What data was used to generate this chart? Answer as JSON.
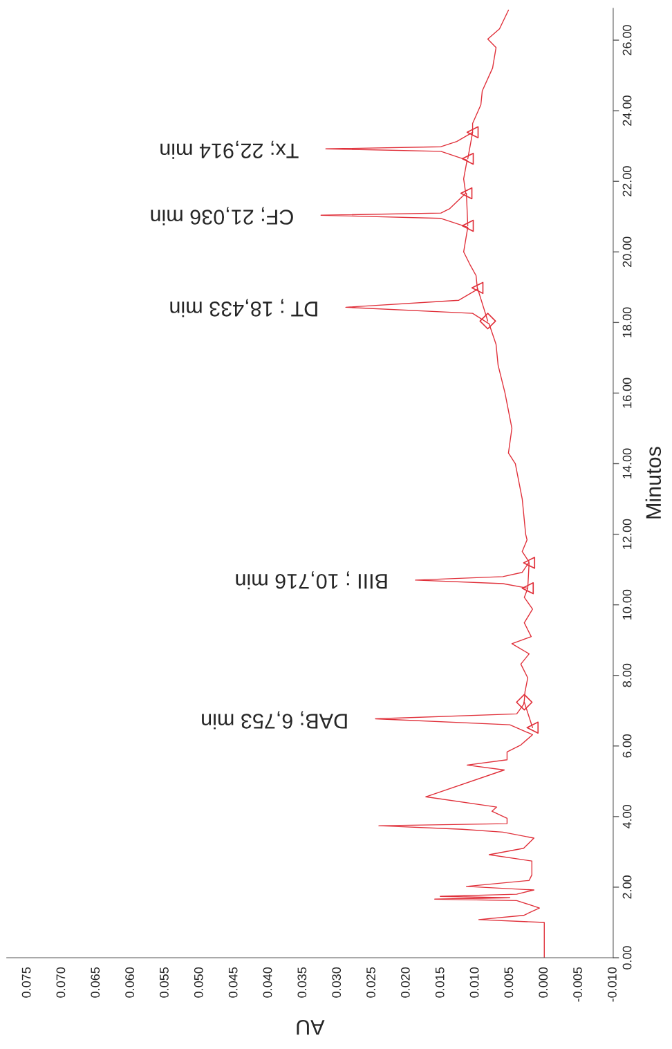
{
  "chart_data": {
    "type": "line",
    "xlabel": "AU",
    "ylabel": "Minutos",
    "xlim": [
      0.078,
      -0.01
    ],
    "ylim": [
      0,
      26.9
    ],
    "yticks": [
      {
        "value": 0,
        "label": "0.00"
      },
      {
        "value": 2,
        "label": "2.00"
      },
      {
        "value": 4,
        "label": "4.00"
      },
      {
        "value": 6,
        "label": "6.00"
      },
      {
        "value": 8,
        "label": "8.00"
      },
      {
        "value": 10,
        "label": "10.00"
      },
      {
        "value": 12,
        "label": "12.00"
      },
      {
        "value": 14,
        "label": "14.00"
      },
      {
        "value": 16,
        "label": "16.00"
      },
      {
        "value": 18,
        "label": "18.00"
      },
      {
        "value": 20,
        "label": "20.00"
      },
      {
        "value": 22,
        "label": "22.00"
      },
      {
        "value": 24,
        "label": "24.00"
      },
      {
        "value": 26,
        "label": "26.00"
      }
    ],
    "xticks": [
      {
        "value": -0.01,
        "label": "-0.010"
      },
      {
        "value": -0.005,
        "label": "-0.005"
      },
      {
        "value": 0,
        "label": "0.000"
      },
      {
        "value": 0.005,
        "label": "0.005"
      },
      {
        "value": 0.01,
        "label": "0.010"
      },
      {
        "value": 0.015,
        "label": "0.015"
      },
      {
        "value": 0.02,
        "label": "0.020"
      },
      {
        "value": 0.025,
        "label": "0.025"
      },
      {
        "value": 0.03,
        "label": "0.030"
      },
      {
        "value": 0.035,
        "label": "0.035"
      },
      {
        "value": 0.04,
        "label": "0.040"
      },
      {
        "value": 0.045,
        "label": "0.045"
      },
      {
        "value": 0.05,
        "label": "0.050"
      },
      {
        "value": 0.055,
        "label": "0.055"
      },
      {
        "value": 0.06,
        "label": "0.060"
      },
      {
        "value": 0.065,
        "label": "0.065"
      },
      {
        "value": 0.07,
        "label": "0.070"
      },
      {
        "value": 0.075,
        "label": "0.075"
      }
    ],
    "series": [
      {
        "color": "#e0303a",
        "values": [
          0,
          1.0,
          1.08,
          1.2,
          1.41,
          1.62,
          1.66,
          1.7,
          1.74,
          1.8,
          1.92,
          2.02,
          2.19,
          2.35,
          2.74,
          2.92,
          3.1,
          3.39,
          3.56,
          3.64,
          3.74,
          3.8,
          3.95,
          4.15,
          4.27,
          4.56,
          5.32,
          5.46,
          5.61,
          5.83,
          6.03,
          6.32,
          6.6,
          6.77,
          6.91,
          7.18,
          7.28,
          7.53,
          7.93,
          8.32,
          8.61,
          8.9,
          9.1,
          9.49,
          9.88,
          10.21,
          10.47,
          10.6,
          10.7,
          10.8,
          10.92,
          11.21,
          11.51,
          11.84,
          12.0,
          13.0,
          14.0,
          14.3,
          15.0,
          16.0,
          16.79,
          17.38,
          17.96,
          18.26,
          18.43,
          18.63,
          18.94,
          19.33,
          19.61,
          20.0,
          20.7,
          20.95,
          21.04,
          21.1,
          21.23,
          21.66,
          22.07,
          22.6,
          22.85,
          22.92,
          22.98,
          23.13,
          23.39,
          23.64,
          24.17,
          24.56,
          25.21,
          25.79,
          26.03,
          26.32,
          26.85
        ],
        "x": [
          0.0,
          0.0,
          0.0095,
          0.003,
          0.0007,
          0.004,
          0.0159,
          0.005,
          0.0151,
          0.004,
          0.0015,
          0.0113,
          0.0022,
          0.0018,
          0.0018,
          0.008,
          0.003,
          0.0015,
          0.006,
          0.0119,
          0.024,
          0.0054,
          0.0054,
          0.0076,
          0.0069,
          0.0172,
          0.0058,
          0.0112,
          0.0054,
          0.0054,
          0.0034,
          0.0017,
          0.005,
          0.0245,
          0.004,
          0.003,
          0.0029,
          0.0028,
          0.0024,
          0.0034,
          0.0022,
          0.0047,
          0.0019,
          0.0029,
          0.0017,
          0.0029,
          0.0024,
          0.006,
          0.0187,
          0.006,
          0.0032,
          0.0022,
          0.0032,
          0.0025,
          0.0027,
          0.0032,
          0.0042,
          0.0052,
          0.0047,
          0.0057,
          0.0067,
          0.007,
          0.008,
          0.0104,
          0.0288,
          0.0124,
          0.0097,
          0.0099,
          0.0107,
          0.0117,
          0.0111,
          0.015,
          0.0324,
          0.015,
          0.0137,
          0.0114,
          0.0117,
          0.0112,
          0.015,
          0.0317,
          0.015,
          0.0127,
          0.0104,
          0.0104,
          0.0092,
          0.009,
          0.0075,
          0.007,
          0.0082,
          0.0065,
          0.0052
        ]
      },
      {
        "color": "#e0303a",
        "values": [
          6.52,
          7.24
        ],
        "x": [
          0.0017,
          0.0029
        ]
      },
      {
        "color": "#e0303a",
        "values": [
          10.47,
          11.19
        ],
        "x": [
          0.0024,
          0.0022
        ]
      },
      {
        "color": "#e0303a",
        "values": [
          18.04,
          18.98
        ],
        "x": [
          0.0082,
          0.0097
        ]
      },
      {
        "color": "#e0303a",
        "values": [
          20.74,
          21.66
        ],
        "x": [
          0.0111,
          0.0113
        ]
      },
      {
        "color": "#e0303a",
        "values": [
          22.64,
          23.39
        ],
        "x": [
          0.0111,
          0.0104
        ]
      },
      {
        "type": "scatter",
        "color": "#e0303a",
        "marker": "triangle",
        "values": [
          6.52,
          10.47,
          11.19,
          18.98,
          20.74,
          21.66,
          22.64,
          23.39
        ],
        "x": [
          0.0017,
          0.0024,
          0.0022,
          0.0097,
          0.0111,
          0.0113,
          0.0111,
          0.0104
        ]
      },
      {
        "type": "scatter",
        "color": "#e0303a",
        "marker": "diamond",
        "values": [
          7.24,
          18.04
        ],
        "x": [
          0.0029,
          0.0082
        ]
      }
    ],
    "annotations": [
      {
        "text": "DAB; 6,753 min",
        "x": 0.0245,
        "y": 6.753
      },
      {
        "text": "BIII ; 10,716 min",
        "x": 0.0187,
        "y": 10.716
      },
      {
        "text": "DT ; 18,433 min",
        "x": 0.0288,
        "y": 18.433
      },
      {
        "text": "CF; 21,036 min",
        "x": 0.0324,
        "y": 21.036
      },
      {
        "text": "Tx; 22,914 min",
        "x": 0.0317,
        "y": 22.914
      }
    ]
  }
}
